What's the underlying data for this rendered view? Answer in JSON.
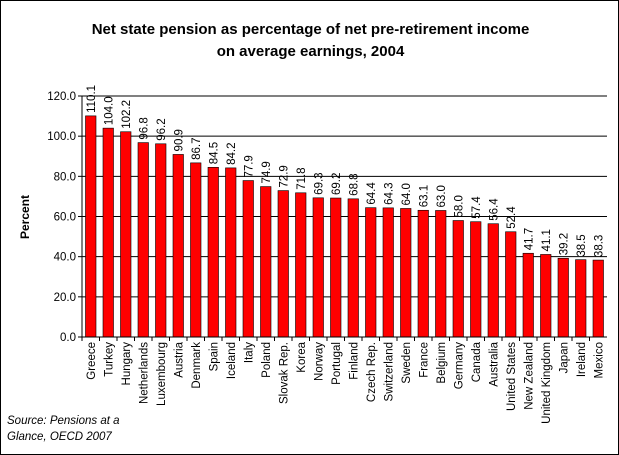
{
  "chart": {
    "title_line1": "Net state pension as percentage of net pre-retirement income",
    "title_line2": "on average earnings, 2004",
    "source_line1": "Source: Pensions at a",
    "source_line2": "Glance, OECD 2007"
  },
  "chart_data": {
    "type": "bar",
    "title": "Net state pension as percentage of net pre-retirement income on average earnings, 2004",
    "xlabel": "",
    "ylabel": "Percent",
    "ylim": [
      0,
      120
    ],
    "yticks": [
      "0.0",
      "20.0",
      "40.0",
      "60.0",
      "80.0",
      "100.0",
      "120.0"
    ],
    "grid": true,
    "legend": "none",
    "bar_color": "#ff0000",
    "categories": [
      "Greece",
      "Turkey",
      "Hungary",
      "Netherlands",
      "Luxembourg",
      "Austria",
      "Denmark",
      "Spain",
      "Iceland",
      "Italy",
      "Poland",
      "Slovak Rep.",
      "Korea",
      "Norway",
      "Portugal",
      "Finland",
      "Czech Rep.",
      "Switzerland",
      "Sweden",
      "France",
      "Belgium",
      "Germany",
      "Canada",
      "Australia",
      "United States",
      "New Zealand",
      "United Kingdom",
      "Japan",
      "Ireland",
      "Mexico"
    ],
    "values": [
      110.1,
      104.0,
      102.2,
      96.8,
      96.2,
      90.9,
      86.7,
      84.5,
      84.2,
      77.9,
      74.9,
      72.9,
      71.8,
      69.3,
      69.2,
      68.8,
      64.4,
      64.3,
      64.0,
      63.1,
      63.0,
      58.0,
      57.4,
      56.4,
      52.4,
      41.7,
      41.1,
      39.2,
      38.5,
      38.3
    ],
    "labels": [
      "110.1",
      "104.0",
      "102.2",
      "96.8",
      "96.2",
      "90.9",
      "86.7",
      "84.5",
      "84.2",
      "77.9",
      "74.9",
      "72.9",
      "71.8",
      "69.3",
      "69.2",
      "68.8",
      "64.4",
      "64.3",
      "64.0",
      "63.1",
      "63.0",
      "58.0",
      "57.4",
      "56.4",
      "52.4",
      "41.7",
      "41.1",
      "39.2",
      "38.5",
      "38.3"
    ]
  }
}
